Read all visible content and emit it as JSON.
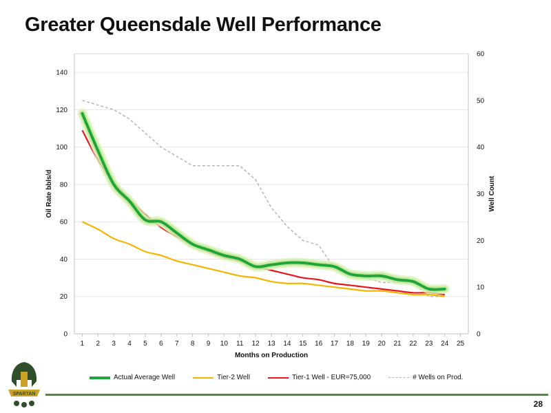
{
  "page": {
    "title": "Greater Queensdale Well Performance",
    "page_number": "28",
    "logo_text": "SPARTAN"
  },
  "chart_data": {
    "type": "line",
    "title": "",
    "xlabel": "Months on Production",
    "ylabel": "Oil Rate bbls/d",
    "y2label": "Well Count",
    "x_ticks": [
      1,
      2,
      3,
      4,
      5,
      6,
      7,
      8,
      9,
      10,
      11,
      12,
      13,
      14,
      15,
      16,
      17,
      18,
      19,
      20,
      21,
      22,
      23,
      24,
      25
    ],
    "xlim": [
      0.5,
      25.5
    ],
    "ylim": [
      0,
      150
    ],
    "y_ticks": [
      0,
      20,
      40,
      60,
      80,
      100,
      120,
      140
    ],
    "y2lim": [
      0,
      60
    ],
    "y2_ticks": [
      0,
      10,
      20,
      30,
      40,
      50,
      60
    ],
    "grid": "horizontal",
    "legend_position": "bottom",
    "series": [
      {
        "name": "Actual Average Well",
        "axis": "left",
        "color": "#1fa53b",
        "x": [
          1,
          2,
          3,
          4,
          5,
          6,
          7,
          8,
          9,
          10,
          11,
          12,
          13,
          14,
          15,
          16,
          17,
          18,
          19,
          20,
          21,
          22,
          23,
          24
        ],
        "values": [
          118,
          98,
          80,
          71,
          61,
          60,
          54,
          48,
          45,
          42,
          40,
          36,
          37,
          38,
          38,
          37,
          36,
          32,
          31,
          31,
          29,
          28,
          24,
          24
        ]
      },
      {
        "name": "Tier-2 Well",
        "axis": "left",
        "color": "#f5b400",
        "x": [
          1,
          2,
          3,
          4,
          5,
          6,
          7,
          8,
          9,
          10,
          11,
          12,
          13,
          14,
          15,
          16,
          17,
          18,
          19,
          20,
          21,
          22,
          23,
          24
        ],
        "values": [
          60,
          56,
          51,
          48,
          44,
          42,
          39,
          37,
          35,
          33,
          31,
          30,
          28,
          27,
          27,
          26,
          25,
          24,
          23,
          23,
          22,
          21,
          21,
          20
        ]
      },
      {
        "name": "Tier-1 Well - EUR=75,000",
        "axis": "left",
        "color": "#e8141c",
        "x": [
          1,
          2,
          3,
          4,
          5,
          6,
          7,
          8,
          9,
          10,
          11,
          12,
          13,
          14,
          15,
          16,
          17,
          18,
          19,
          20,
          21,
          22,
          23,
          24
        ],
        "values": [
          109,
          93,
          81,
          72,
          64,
          57,
          52,
          48,
          44,
          41,
          39,
          36,
          34,
          32,
          30,
          29,
          27,
          26,
          25,
          24,
          23,
          22,
          22,
          21
        ]
      },
      {
        "name": "#  Wells on Prod.",
        "axis": "right",
        "color": "#b4b4b4",
        "dashed": true,
        "x": [
          1,
          2,
          3,
          4,
          5,
          6,
          7,
          8,
          9,
          10,
          11,
          12,
          13,
          14,
          15,
          16,
          17,
          18,
          19,
          20,
          21,
          22,
          23,
          24
        ],
        "values": [
          50,
          49,
          48,
          46,
          43,
          40,
          38,
          36,
          36,
          36,
          36,
          33,
          27,
          23,
          20,
          19,
          14,
          13,
          12,
          11,
          11,
          11,
          8,
          8
        ]
      }
    ]
  }
}
